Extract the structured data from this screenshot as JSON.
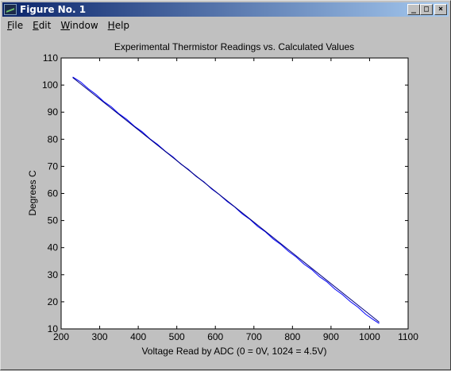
{
  "window": {
    "title": "Figure No. 1",
    "controls": {
      "minimize_icon": "minimize-icon",
      "maximize_icon": "maximize-icon",
      "close_icon": "close-icon"
    }
  },
  "menubar": {
    "items": [
      {
        "label_first": "F",
        "label_rest": "ile"
      },
      {
        "label_first": "E",
        "label_rest": "dit"
      },
      {
        "label_first": "W",
        "label_rest": "indow"
      },
      {
        "label_first": "H",
        "label_rest": "elp"
      }
    ]
  },
  "chart_data": {
    "type": "line",
    "title": "Experimental Thermistor Readings vs. Calculated Values",
    "xlabel": "Voltage Read by ADC (0 = 0V, 1024 = 4.5V)",
    "ylabel": "Degrees C",
    "xlim": [
      200,
      1100
    ],
    "ylim": [
      10,
      110
    ],
    "xticks": [
      200,
      300,
      400,
      500,
      600,
      700,
      800,
      900,
      1000,
      1100
    ],
    "yticks": [
      10,
      20,
      30,
      40,
      50,
      60,
      70,
      80,
      90,
      100,
      110
    ],
    "grid": false,
    "series": [
      {
        "color": "#0000ff",
        "x": [
          230,
          250,
          270,
          290,
          310,
          330,
          350,
          370,
          390,
          410,
          430,
          450,
          470,
          490,
          510,
          530,
          550,
          570,
          590,
          610,
          630,
          650,
          670,
          690,
          710,
          730,
          750,
          770,
          790,
          810,
          830,
          850,
          870,
          890,
          910,
          930,
          950,
          970,
          990,
          1010,
          1025
        ],
        "y": [
          103,
          101.2,
          98.7,
          96.6,
          94.0,
          92.0,
          89.4,
          87.4,
          84.8,
          82.8,
          80.2,
          78.1,
          75.6,
          73.5,
          70.9,
          68.9,
          66.3,
          64.3,
          61.7,
          59.6,
          57.1,
          55.0,
          52.4,
          50.4,
          47.8,
          45.8,
          43.2,
          41.1,
          38.6,
          36.5,
          33.9,
          31.9,
          29.3,
          27.3,
          24.7,
          22.6,
          20.1,
          18.0,
          15.4,
          13.4,
          12
        ]
      },
      {
        "color": "#000080",
        "x": [
          230,
          1025
        ],
        "y": [
          102.8,
          12.5
        ]
      }
    ]
  }
}
